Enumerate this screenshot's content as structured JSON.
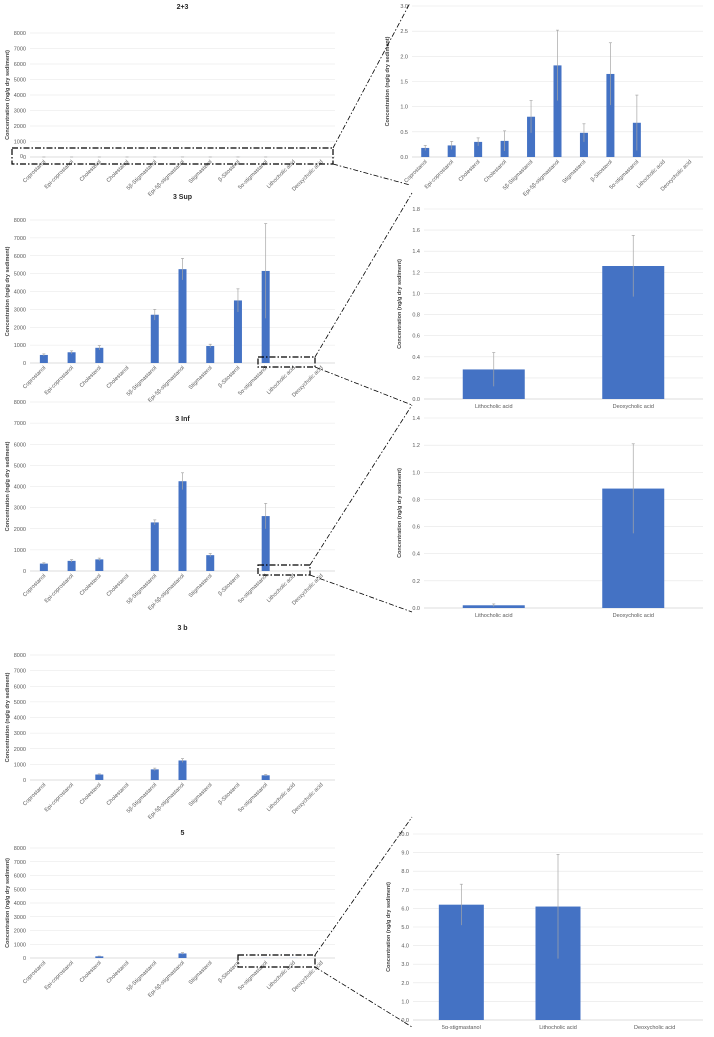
{
  "ylabel": "Concentration (ng/g dry sediment)",
  "colors": {
    "bar": "#4472C4",
    "error": "#A6A6A6",
    "grid": "#E6E6E6"
  },
  "chart_data": [
    {
      "id": "main-2-3",
      "type": "bar",
      "title": "2+3",
      "ylabel": "Concentration (ng/g dry sediment)",
      "ylim": [
        0,
        8000
      ],
      "yticks": [
        "0",
        "1000",
        "2000",
        "3000",
        "4000",
        "5000",
        "6000",
        "7000",
        "8000"
      ],
      "categories": [
        "Coprostanol",
        "Epi-coprostanol",
        "Cholesterol",
        "Cholestanol",
        "5β-Stigmastanol",
        "Epi-5β-stigmastanol",
        "Stigmasterol",
        "β-Sitosterol",
        "5α-stigmastanol",
        "Lithocholic acid",
        "Deoxycholic acid"
      ],
      "values": [
        0.18,
        0.23,
        0.3,
        0.32,
        0.8,
        1.82,
        0.48,
        1.65,
        0.68,
        0,
        0
      ],
      "errors": [
        0.05,
        0.08,
        0.08,
        0.2,
        0.32,
        0.7,
        0.18,
        0.62,
        0.55,
        0,
        0
      ],
      "callout_text": "0"
    },
    {
      "id": "zoom-2-3",
      "type": "bar",
      "title": "",
      "ylabel": "Concentration (ng/g dry sediment)",
      "ylim": [
        0,
        3.0
      ],
      "yticks": [
        "0.0",
        "0.5",
        "1.0",
        "1.5",
        "2.0",
        "2.5",
        "3.0"
      ],
      "categories": [
        "Coprostanol",
        "Epi-coprostanol",
        "Cholesterol",
        "Cholestanol",
        "5β-Stigmastanol",
        "Epi-5β-stigmastanol",
        "Stigmasterol",
        "β-Sitosterol",
        "5α-stigmastanol",
        "Lithocholic acid",
        "Deoxycholic acid"
      ],
      "values": [
        0.18,
        0.23,
        0.3,
        0.32,
        0.8,
        1.82,
        0.48,
        1.65,
        0.68,
        0,
        0
      ],
      "errors": [
        0.05,
        0.08,
        0.08,
        0.2,
        0.32,
        0.7,
        0.18,
        0.62,
        0.55,
        0,
        0
      ]
    },
    {
      "id": "main-3-sup",
      "type": "bar",
      "title": "3 Sup",
      "ylabel": "Concentration (ng/g dry sediment)",
      "ylim": [
        0,
        8000
      ],
      "yticks": [
        "0",
        "1000",
        "2000",
        "3000",
        "4000",
        "5000",
        "6000",
        "7000",
        "8000"
      ],
      "categories": [
        "Coprostanol",
        "Epi-coprostanol",
        "Cholesterol",
        "Cholestanol",
        "5β-Stigmastanol",
        "Epi-5β-stigmastanol",
        "Stigmasterol",
        "β-Sitosterol",
        "5α-stigmastanol",
        "Lithocholic acid",
        "Deoxycholic acid"
      ],
      "values": [
        450,
        600,
        850,
        0,
        2700,
        5250,
        950,
        3500,
        5150,
        0.28,
        1.26
      ],
      "errors": [
        60,
        80,
        120,
        0,
        300,
        600,
        100,
        650,
        2650,
        0,
        0
      ]
    },
    {
      "id": "zoom-3-sup",
      "type": "bar",
      "title": "",
      "ylabel": "Concentration (ng/g dry sediment)",
      "ylim": [
        0,
        1.8
      ],
      "yticks": [
        "0.0",
        "0.2",
        "0.4",
        "0.6",
        "0.8",
        "1.0",
        "1.2",
        "1.4",
        "1.6",
        "1.8"
      ],
      "categories": [
        "Lithocholic acid",
        "Deoxycholic acid"
      ],
      "values": [
        0.28,
        1.26
      ],
      "errors": [
        0.16,
        0.29
      ]
    },
    {
      "id": "main-3-inf",
      "type": "bar",
      "title": "3 Inf",
      "ylabel": "Concentration (ng/g dry sediment)",
      "ylim": [
        0,
        8000
      ],
      "yticks": [
        "0",
        "1000",
        "2000",
        "3000",
        "4000",
        "5000",
        "6000",
        "7000",
        "8000"
      ],
      "categories": [
        "Coprostanol",
        "Epi-coprostanol",
        "Cholesterol",
        "Cholestanol",
        "5β-Stigmastanol",
        "Epi-5β-stigmastanol",
        "Stigmasterol",
        "β-Sitosterol",
        "5α-stigmastanol",
        "Lithocholic acid",
        "Deoxycholic acid"
      ],
      "values": [
        350,
        480,
        550,
        0,
        2300,
        4250,
        750,
        0,
        2600,
        0.02,
        0.88
      ],
      "errors": [
        40,
        60,
        60,
        0,
        120,
        400,
        80,
        0,
        600,
        0,
        0
      ]
    },
    {
      "id": "zoom-3-inf",
      "type": "bar",
      "title": "",
      "ylabel": "Concentration (ng/g dry sediment)",
      "ylim": [
        0,
        1.4
      ],
      "yticks": [
        "0.0",
        "0.2",
        "0.4",
        "0.6",
        "0.8",
        "1.0",
        "1.2",
        "1.4"
      ],
      "categories": [
        "Lithocholic acid",
        "Deoxycholic acid"
      ],
      "values": [
        0.02,
        0.88
      ],
      "errors": [
        0.01,
        0.33
      ]
    },
    {
      "id": "main-3-b",
      "type": "bar",
      "title": "3 b",
      "ylabel": "Concentration (ng/g dry sediment)",
      "ylim": [
        0,
        8000
      ],
      "yticks": [
        "0",
        "1000",
        "2000",
        "3000",
        "4000",
        "5000",
        "6000",
        "7000",
        "8000"
      ],
      "categories": [
        "Coprostanol",
        "Epi-coprostanol",
        "Cholesterol",
        "Cholestanol",
        "5β-Stigmastanol",
        "Epi-5β-stigmastanol",
        "Stigmasterol",
        "β-Sitosterol",
        "5α-stigmastanol",
        "Lithocholic acid",
        "Deoxycholic acid"
      ],
      "values": [
        0,
        0,
        350,
        0,
        680,
        1250,
        0,
        0,
        300,
        0,
        0
      ],
      "errors": [
        0,
        0,
        40,
        0,
        80,
        120,
        0,
        0,
        50,
        0,
        0
      ]
    },
    {
      "id": "main-5",
      "type": "bar",
      "title": "5",
      "ylabel": "Concentration (ng/g dry sediment)",
      "ylim": [
        0,
        8000
      ],
      "yticks": [
        "0",
        "1000",
        "2000",
        "3000",
        "4000",
        "5000",
        "6000",
        "7000",
        "8000"
      ],
      "categories": [
        "Coprostanol",
        "Epi-coprostanol",
        "Cholesterol",
        "Cholestanol",
        "5β-Stigmastanol",
        "Epi-5β-stigmastanol",
        "Stigmasterol",
        "β-Sitosterol",
        "5α-stigmastanol",
        "Lithocholic acid",
        "Deoxycholic acid"
      ],
      "values": [
        0,
        0,
        120,
        0,
        0,
        330,
        0,
        0,
        6.2,
        6.1,
        0
      ],
      "errors": [
        0,
        0,
        20,
        0,
        0,
        60,
        0,
        0,
        0,
        0,
        0
      ]
    },
    {
      "id": "zoom-5",
      "type": "bar",
      "title": "",
      "ylabel": "Concentration (ng/g dry sediment)",
      "ylim": [
        0,
        10.0
      ],
      "yticks": [
        "0.0",
        "1.0",
        "2.0",
        "3.0",
        "4.0",
        "5.0",
        "6.0",
        "7.0",
        "8.0",
        "9.0",
        "10.0"
      ],
      "categories": [
        "5α-stigmastanol",
        "Lithocholic acid",
        "Deoxycholic acid"
      ],
      "values": [
        6.2,
        6.1,
        0
      ],
      "errors": [
        1.1,
        2.8,
        0
      ]
    }
  ]
}
